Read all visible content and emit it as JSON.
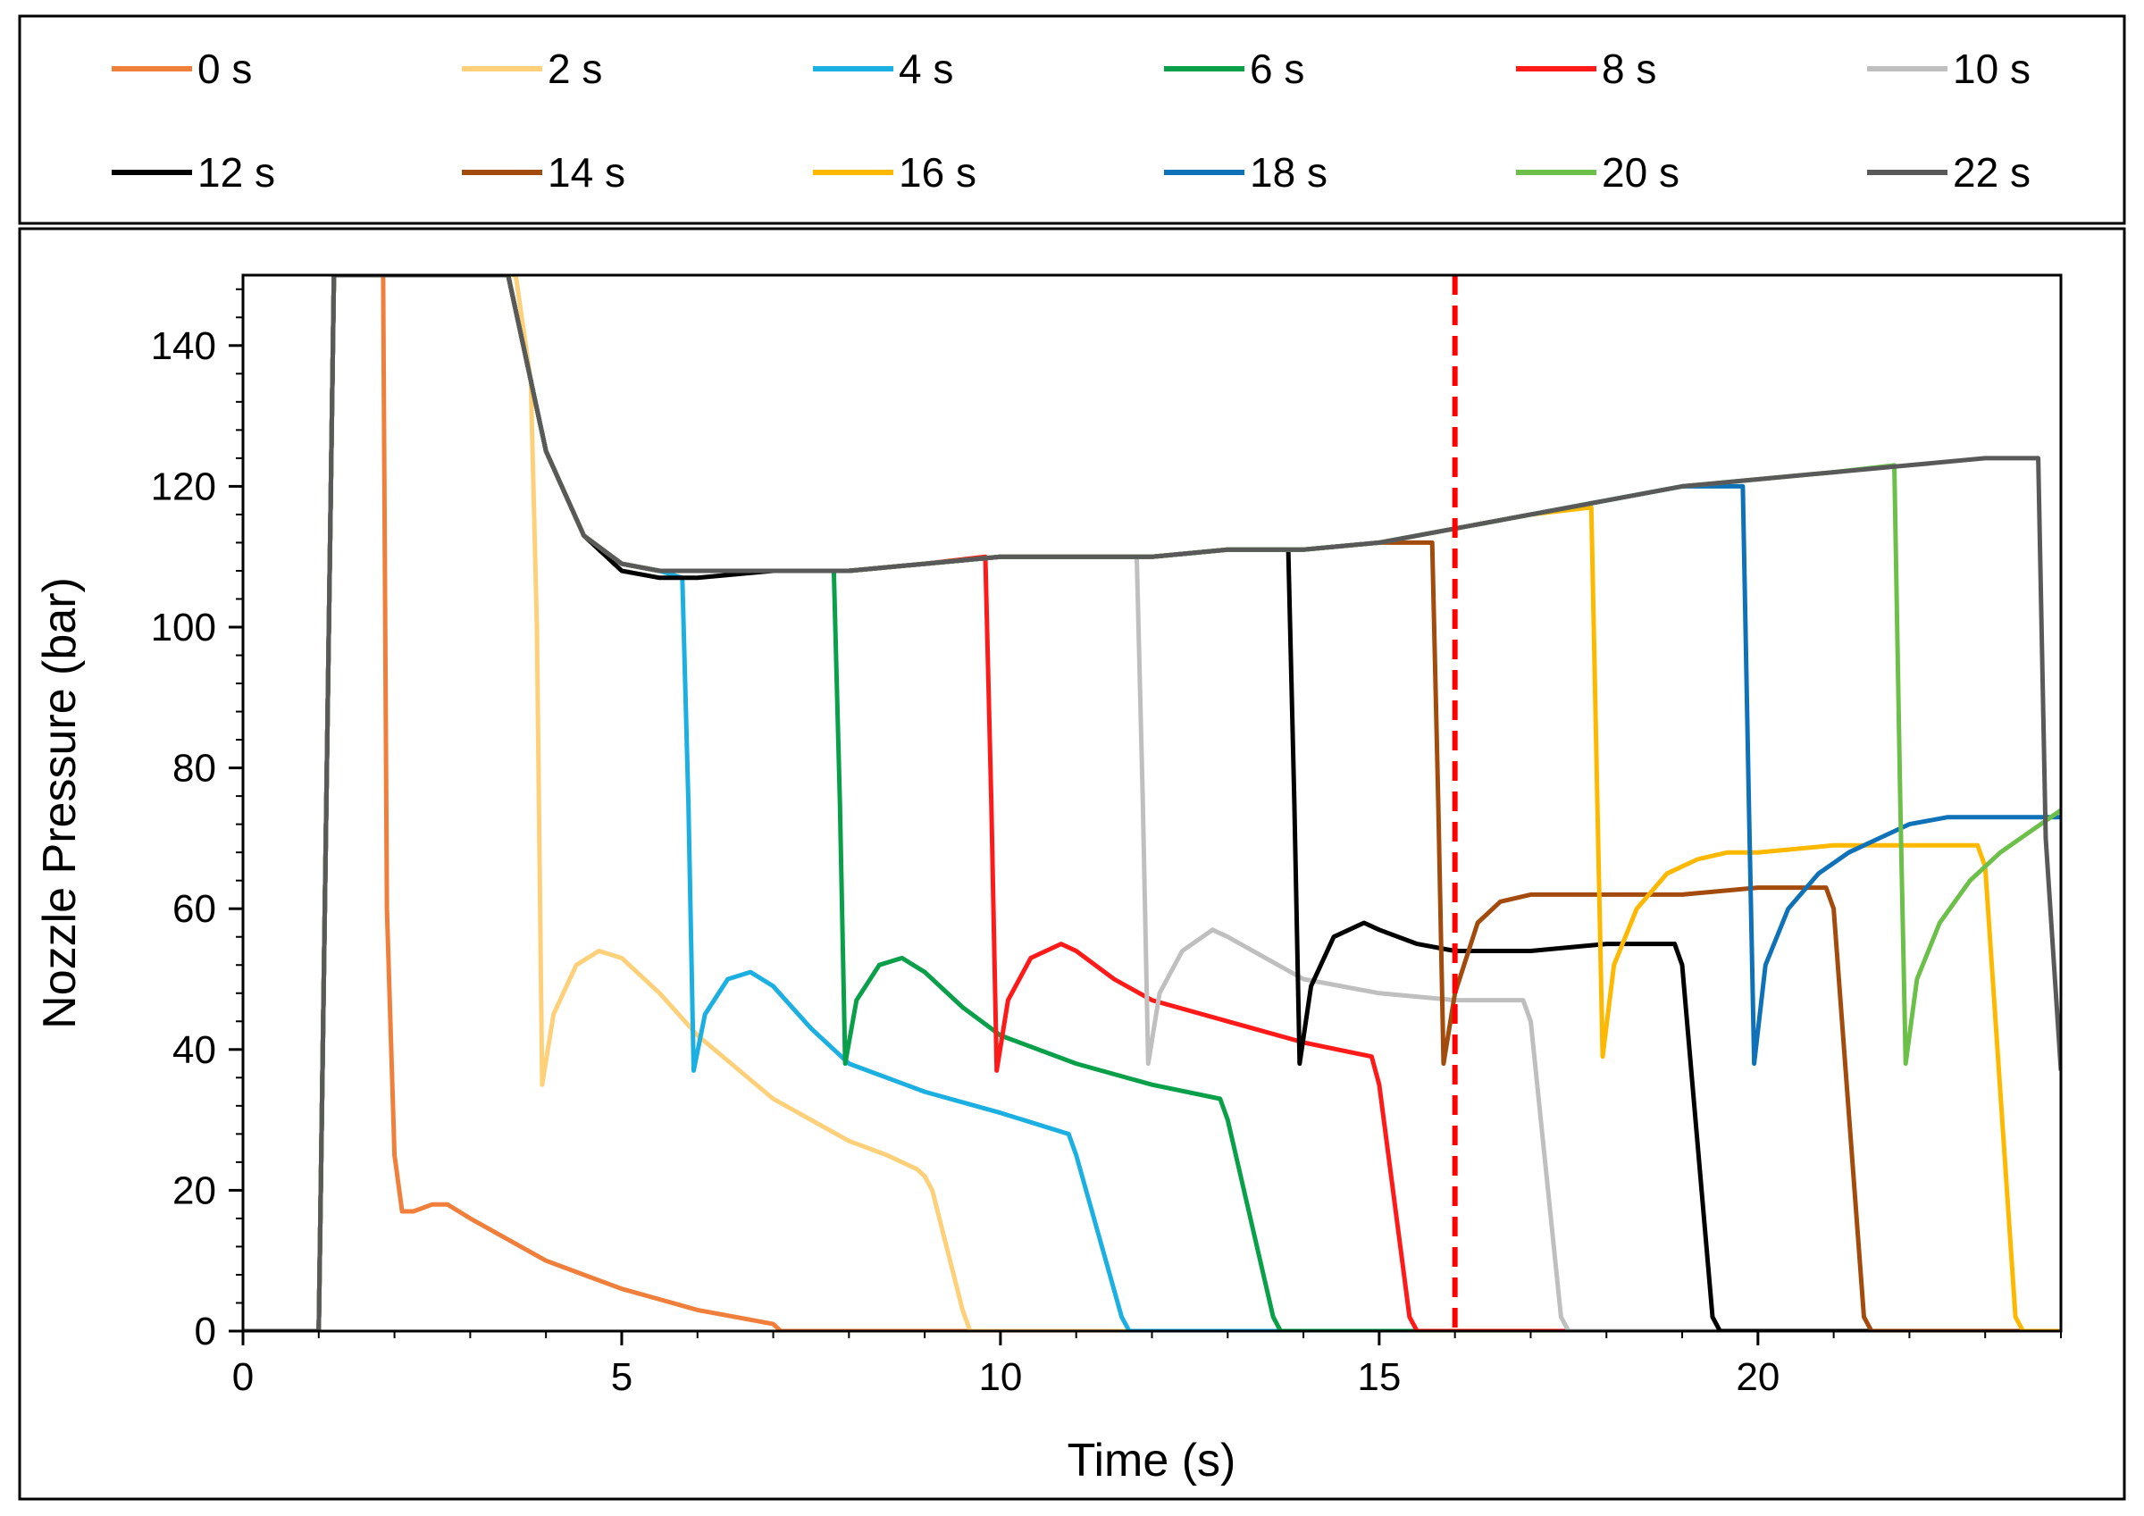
{
  "chart_data": {
    "type": "line",
    "title": "",
    "xlabel": "Time (s)",
    "ylabel": "Nozzle Pressure (bar)",
    "xlim": [
      0,
      24
    ],
    "ylim": [
      0,
      150
    ],
    "xticks": [
      0,
      5,
      10,
      15,
      20
    ],
    "yticks": [
      0,
      20,
      40,
      60,
      80,
      100,
      120,
      140
    ],
    "grid": false,
    "legend_position": "top",
    "reference_line": {
      "x": 16,
      "color": "#ff0000",
      "style": "dashed"
    },
    "series": [
      {
        "name": "0 s",
        "color": "#f07f3c",
        "x": [
          0,
          1.0,
          1.2,
          1.85,
          1.9,
          2.0,
          2.1,
          2.25,
          2.5,
          2.7,
          3.0,
          3.5,
          4.0,
          4.5,
          5.0,
          5.5,
          6.0,
          6.5,
          7.0,
          7.1,
          24
        ],
        "y": [
          0,
          0,
          150,
          150,
          60,
          25,
          17,
          17,
          18,
          18,
          16,
          13,
          10,
          8,
          6,
          4.5,
          3,
          2,
          1,
          0,
          0
        ]
      },
      {
        "name": "2 s",
        "color": "#ffd07a",
        "x": [
          0,
          1.0,
          1.2,
          3.6,
          3.8,
          3.88,
          3.95,
          4.1,
          4.4,
          4.7,
          5.0,
          5.5,
          6.0,
          7.0,
          8.0,
          8.5,
          8.9,
          9.0,
          9.1,
          9.5,
          9.6,
          24
        ],
        "y": [
          0,
          0,
          150,
          150,
          135,
          100,
          35,
          45,
          52,
          54,
          53,
          48,
          42,
          33,
          27,
          25,
          23,
          22,
          20,
          3,
          0,
          0
        ]
      },
      {
        "name": "4 s",
        "color": "#1cafe2",
        "x": [
          0,
          1.0,
          1.2,
          3.5,
          4.0,
          4.5,
          5.0,
          5.5,
          5.8,
          5.88,
          5.95,
          6.1,
          6.4,
          6.7,
          7.0,
          7.5,
          8.0,
          9.0,
          10.0,
          10.9,
          11.0,
          11.6,
          11.7,
          24
        ],
        "y": [
          0,
          0,
          150,
          150,
          125,
          113,
          109,
          108,
          107,
          75,
          37,
          45,
          50,
          51,
          49,
          43,
          38,
          34,
          31,
          28,
          25,
          2,
          0,
          0
        ]
      },
      {
        "name": "6 s",
        "color": "#0aa04a",
        "x": [
          0,
          1.0,
          1.2,
          3.5,
          4.0,
          4.5,
          5.0,
          5.5,
          6.0,
          7.0,
          7.8,
          7.88,
          7.95,
          8.1,
          8.4,
          8.7,
          9.0,
          9.5,
          10.0,
          11.0,
          12.0,
          12.9,
          13.0,
          13.6,
          13.7,
          24
        ],
        "y": [
          0,
          0,
          150,
          150,
          125,
          113,
          109,
          108,
          108,
          108,
          108,
          75,
          38,
          47,
          52,
          53,
          51,
          46,
          42,
          38,
          35,
          33,
          30,
          2,
          0,
          0
        ]
      },
      {
        "name": "8 s",
        "color": "#ff1a1a",
        "x": [
          0,
          1.0,
          1.2,
          3.5,
          4.0,
          4.5,
          5.0,
          5.5,
          6.0,
          7.0,
          8.0,
          9.0,
          9.8,
          9.88,
          9.95,
          10.1,
          10.4,
          10.8,
          11.0,
          11.5,
          12.0,
          13.0,
          14.0,
          14.9,
          15.0,
          15.4,
          15.5,
          24
        ],
        "y": [
          0,
          0,
          150,
          150,
          125,
          113,
          109,
          108,
          108,
          108,
          108,
          109,
          110,
          75,
          37,
          47,
          53,
          55,
          54,
          50,
          47,
          44,
          41,
          39,
          35,
          2,
          0,
          0
        ]
      },
      {
        "name": "10 s",
        "color": "#bfbfbf",
        "x": [
          0,
          1.0,
          1.2,
          3.5,
          4.0,
          4.5,
          5.0,
          5.5,
          6.0,
          7.0,
          8.0,
          9.0,
          10.0,
          11.0,
          11.8,
          11.88,
          11.95,
          12.1,
          12.4,
          12.8,
          13.0,
          13.5,
          14.0,
          15.0,
          16.0,
          16.9,
          17.0,
          17.4,
          17.5,
          24
        ],
        "y": [
          0,
          0,
          150,
          150,
          125,
          113,
          109,
          108,
          108,
          108,
          108,
          109,
          110,
          110,
          110,
          75,
          38,
          48,
          54,
          57,
          56,
          53,
          50,
          48,
          47,
          47,
          44,
          2,
          0,
          0
        ]
      },
      {
        "name": "12 s",
        "color": "#000000",
        "x": [
          0,
          1.0,
          1.2,
          3.5,
          4.0,
          4.5,
          5.0,
          5.5,
          6.0,
          7.0,
          8.0,
          9.0,
          10.0,
          11.0,
          12.0,
          13.0,
          13.8,
          13.88,
          13.95,
          14.1,
          14.4,
          14.8,
          15.0,
          15.5,
          16.0,
          17.0,
          18.0,
          18.9,
          19.0,
          19.4,
          19.5,
          24
        ],
        "y": [
          0,
          0,
          150,
          150,
          125,
          113,
          108,
          107,
          107,
          108,
          108,
          109,
          110,
          110,
          110,
          111,
          111,
          75,
          38,
          49,
          56,
          58,
          57,
          55,
          54,
          54,
          55,
          55,
          52,
          2,
          0,
          0
        ]
      },
      {
        "name": "14 s",
        "color": "#a34a0d",
        "x": [
          0,
          1.0,
          1.2,
          3.5,
          4.0,
          4.5,
          5.0,
          5.5,
          6.0,
          7.0,
          8.0,
          9.0,
          10.0,
          11.0,
          12.0,
          13.0,
          14.0,
          15.0,
          15.7,
          15.78,
          15.85,
          16.0,
          16.3,
          16.6,
          17.0,
          18.0,
          19.0,
          20.0,
          20.9,
          21.0,
          21.4,
          21.5,
          24
        ],
        "y": [
          0,
          0,
          150,
          150,
          125,
          113,
          109,
          108,
          108,
          108,
          108,
          109,
          110,
          110,
          110,
          111,
          111,
          112,
          112,
          75,
          38,
          48,
          58,
          61,
          62,
          62,
          62,
          63,
          63,
          60,
          2,
          0,
          0
        ]
      },
      {
        "name": "16 s",
        "color": "#ffb800",
        "x": [
          0,
          1.0,
          1.2,
          3.5,
          4.0,
          4.5,
          5.0,
          5.5,
          6.0,
          7.0,
          8.0,
          9.0,
          10.0,
          11.0,
          12.0,
          13.0,
          14.0,
          15.0,
          16.0,
          17.0,
          17.8,
          17.88,
          17.95,
          18.1,
          18.4,
          18.8,
          19.2,
          19.6,
          20.0,
          21.0,
          22.0,
          22.9,
          23.0,
          23.4,
          23.5,
          24
        ],
        "y": [
          0,
          0,
          150,
          150,
          125,
          113,
          109,
          108,
          108,
          108,
          108,
          109,
          110,
          110,
          110,
          111,
          111,
          112,
          114,
          116,
          117,
          75,
          39,
          52,
          60,
          65,
          67,
          68,
          68,
          69,
          69,
          69,
          66,
          2,
          0,
          0
        ]
      },
      {
        "name": "18 s",
        "color": "#0f72b8",
        "x": [
          0,
          1.0,
          1.2,
          3.5,
          4.0,
          4.5,
          5.0,
          5.5,
          6.0,
          7.0,
          8.0,
          9.0,
          10.0,
          11.0,
          12.0,
          13.0,
          14.0,
          15.0,
          16.0,
          17.0,
          18.0,
          19.0,
          19.8,
          19.88,
          19.95,
          20.1,
          20.4,
          20.8,
          21.2,
          21.6,
          22.0,
          22.5,
          23.0,
          24
        ],
        "y": [
          0,
          0,
          150,
          150,
          125,
          113,
          109,
          108,
          108,
          108,
          108,
          109,
          110,
          110,
          110,
          111,
          111,
          112,
          114,
          116,
          118,
          120,
          120,
          75,
          38,
          52,
          60,
          65,
          68,
          70,
          72,
          73,
          73,
          73
        ]
      },
      {
        "name": "20 s",
        "color": "#6cc04a",
        "x": [
          0,
          1.0,
          1.2,
          3.5,
          4.0,
          4.5,
          5.0,
          5.5,
          6.0,
          7.0,
          8.0,
          9.0,
          10.0,
          11.0,
          12.0,
          13.0,
          14.0,
          15.0,
          16.0,
          17.0,
          18.0,
          19.0,
          20.0,
          21.0,
          21.8,
          21.88,
          21.95,
          22.1,
          22.4,
          22.8,
          23.2,
          23.6,
          24.0
        ],
        "y": [
          0,
          0,
          150,
          150,
          125,
          113,
          109,
          108,
          108,
          108,
          108,
          109,
          110,
          110,
          110,
          111,
          111,
          112,
          114,
          116,
          118,
          120,
          121,
          122,
          123,
          75,
          38,
          50,
          58,
          64,
          68,
          71,
          74
        ]
      },
      {
        "name": "22 s",
        "color": "#595959",
        "x": [
          0,
          1.0,
          1.2,
          3.5,
          4.0,
          4.5,
          5.0,
          5.5,
          6.0,
          7.0,
          8.0,
          9.0,
          10.0,
          11.0,
          12.0,
          13.0,
          14.0,
          15.0,
          16.0,
          17.0,
          18.0,
          19.0,
          20.0,
          21.0,
          22.0,
          23.0,
          23.5,
          23.7,
          23.8,
          24.0
        ],
        "y": [
          0,
          0,
          150,
          150,
          125,
          113,
          109,
          108,
          108,
          108,
          108,
          109,
          110,
          110,
          110,
          111,
          111,
          112,
          114,
          116,
          118,
          120,
          121,
          122,
          123,
          124,
          124,
          124,
          70,
          37
        ]
      }
    ]
  }
}
